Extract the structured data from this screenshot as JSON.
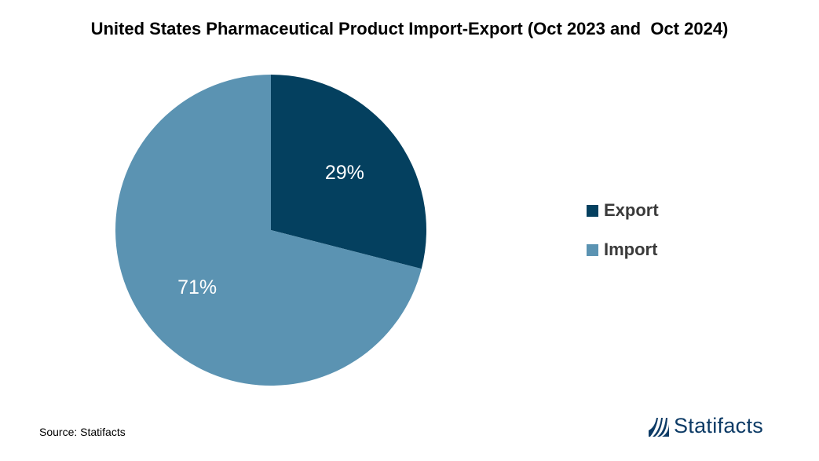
{
  "chart_data": {
    "type": "pie",
    "title": "United States Pharmaceutical Product Import-Export (Oct 2023 and  Oct 2024)",
    "slices": [
      {
        "label": "Export",
        "value": 29,
        "display": "29%",
        "color": "#04405f"
      },
      {
        "label": "Import",
        "value": 71,
        "display": "71%",
        "color": "#5b93b2"
      }
    ],
    "legend_position": "right"
  },
  "footer": {
    "source": "Source: Statifacts"
  },
  "brand": {
    "name": "Statifacts",
    "logo_icon": "statifacts-logo-icon",
    "color": "#0d3b66"
  }
}
